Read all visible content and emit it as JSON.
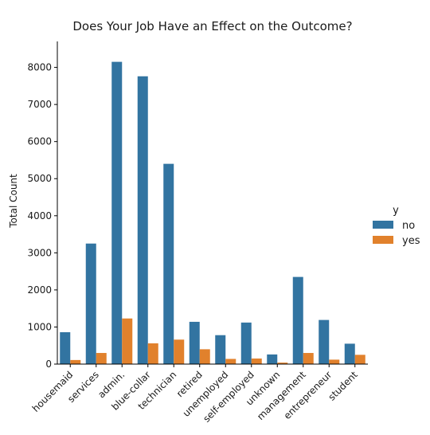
{
  "chart_data": {
    "type": "bar",
    "title": "Does Your Job Have an Effect on the Outcome?",
    "xlabel": "",
    "ylabel": "Total Count",
    "ylim": [
      0,
      8700
    ],
    "yticks": [
      0,
      1000,
      2000,
      3000,
      4000,
      5000,
      6000,
      7000,
      8000
    ],
    "grid": false,
    "legend_position": "right",
    "legend_title": "y",
    "categories": [
      "housemaid",
      "services",
      "admin.",
      "blue-collar",
      "technician",
      "retired",
      "unemployed",
      "self-employed",
      "unknown",
      "management",
      "entrepreneur",
      "student"
    ],
    "series": [
      {
        "name": "no",
        "color": "#3274a1",
        "values": [
          860,
          3250,
          8150,
          7760,
          5400,
          1140,
          780,
          1120,
          260,
          2350,
          1190,
          550
        ]
      },
      {
        "name": "yes",
        "color": "#e1812c",
        "values": [
          110,
          300,
          1230,
          560,
          660,
          400,
          140,
          150,
          40,
          300,
          120,
          250
        ]
      }
    ]
  }
}
